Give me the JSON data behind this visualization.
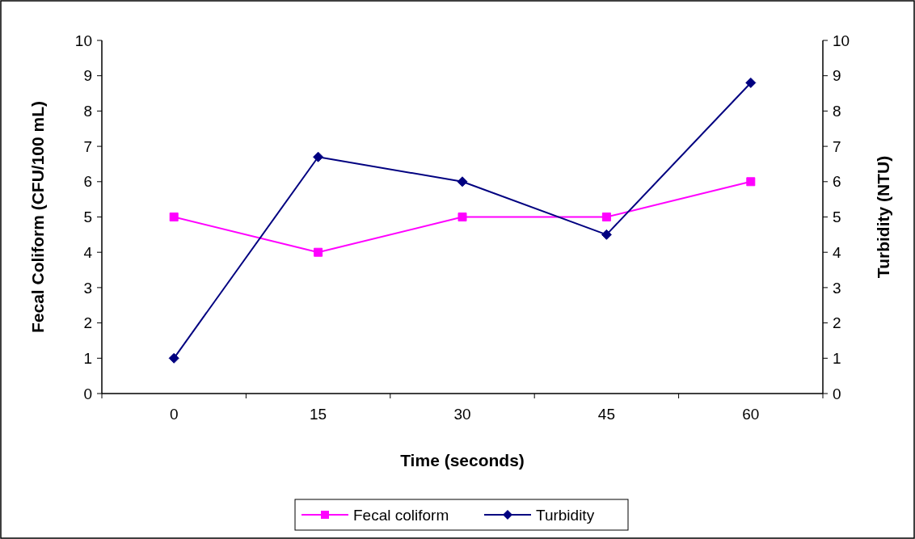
{
  "chart_data": {
    "type": "line",
    "xlabel": "Time (seconds)",
    "ylabel": "Fecal Coliform (CFU/100 mL)",
    "y2label": "Turbidity (NTU)",
    "categories": [
      "0",
      "15",
      "30",
      "45",
      "60"
    ],
    "series": [
      {
        "name": "Fecal coliform",
        "color": "#ff00ff",
        "marker": "square",
        "values": [
          5,
          4,
          5,
          5,
          6
        ]
      },
      {
        "name": "Turbidity",
        "color": "#000080",
        "marker": "diamond",
        "axis": "y2",
        "values": [
          1,
          6.7,
          6.0,
          4.5,
          8.8
        ]
      }
    ],
    "ylim": [
      0,
      10
    ],
    "yticks": [
      0,
      1,
      2,
      3,
      4,
      5,
      6,
      7,
      8,
      9,
      10
    ],
    "y2lim": [
      0,
      10
    ],
    "y2ticks": [
      0,
      1,
      2,
      3,
      4,
      5,
      6,
      7,
      8,
      9,
      10
    ],
    "grid": false,
    "legend": "bottom",
    "line_style": "solid"
  }
}
